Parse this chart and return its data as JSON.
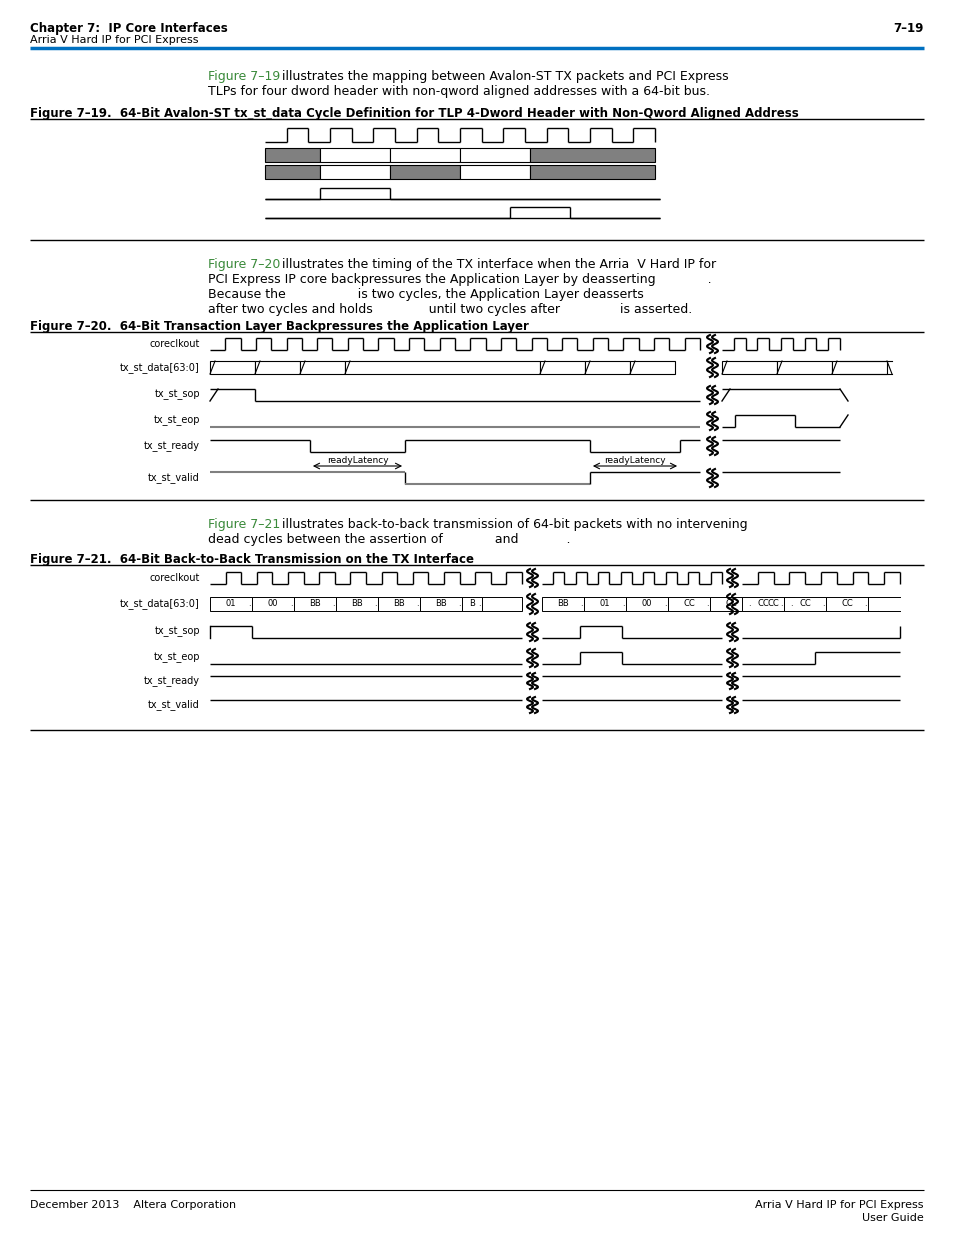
{
  "page_title": "Chapter 7:  IP Core Interfaces",
  "page_subtitle": "Arria V Hard IP for PCI Express",
  "page_number": "7–19",
  "top_rule_color": "#0070C0",
  "bg_color": "#ffffff",
  "green_color": "#3a8a3a",
  "fig19_ref_text": "Figure 7–19",
  "fig19_body": " illustrates the mapping between Avalon-ST TX packets and PCI Express",
  "fig19_body2": "TLPs for four dword header with non-qword aligned addresses with a 64-bit bus.",
  "fig19_title": "Figure 7–19.  64-Bit Avalon-ST tx_st_data Cycle Definition for TLP 4-Dword Header with Non-Qword Aligned Address",
  "fig20_ref_text": "Figure 7–20",
  "fig20_body1": " illustrates the timing of the TX interface when the Arria  V Hard IP for",
  "fig20_body2": "PCI Express IP core backpressures the Application Layer by deasserting             .",
  "fig20_body3": "Because the                  is two cycles, the Application Layer deasserts",
  "fig20_body4": "after two cycles and holds              until two cycles after               is asserted.",
  "fig20_title": "Figure 7–20.  64-Bit Transaction Layer Backpressures the Application Layer",
  "fig21_ref_text": "Figure 7–21",
  "fig21_body1": " illustrates back-to-back transmission of 64-bit packets with no intervening",
  "fig21_body2": "dead cycles between the assertion of             and            .",
  "fig21_title": "Figure 7–21.  64-Bit Back-to-Back Transmission on the TX Interface",
  "footer_left": "December 2013    Altera Corporation",
  "footer_right1": "Arria V Hard IP for PCI Express",
  "footer_right2": "User Guide",
  "gray_fill": "#808080",
  "signal_labels_fig20": [
    "coreclkout",
    "tx_st_data[63:0]",
    "tx_st_sop",
    "tx_st_eop",
    "tx_st_ready",
    "tx_st_valid"
  ],
  "signal_labels_fig21": [
    "coreclkout",
    "tx_st_data[63:0]",
    "tx_st_sop",
    "tx_st_eop",
    "tx_st_ready",
    "tx_st_valid"
  ]
}
